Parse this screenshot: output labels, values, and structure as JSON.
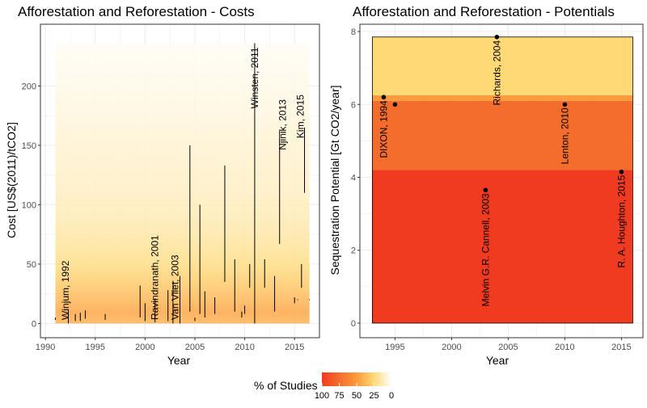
{
  "colors": {
    "panel_bg": "#ffffff",
    "grid": "#ebebeb",
    "border": "#333333",
    "band_100": "#f03b20",
    "band_75": "#f46d2c",
    "band_50": "#fd9a3c",
    "band_25": "#fed976",
    "band_0": "#ffffff",
    "cost_fill": "#fff2bf",
    "segment": "#000000",
    "point": "#000000"
  },
  "chart_data": [
    {
      "type": "segment",
      "title": "Afforestation and Reforestation - Costs",
      "xlabel": "Year",
      "ylabel": "Cost [US$(2011)/tCO2]",
      "xlim": [
        1989.5,
        2017.5
      ],
      "ylim": [
        -12,
        252
      ],
      "xticks": [
        1990,
        1995,
        2000,
        2005,
        2010,
        2015
      ],
      "yticks": [
        0,
        50,
        100,
        150,
        200
      ],
      "density_range": [
        0,
        236
      ],
      "gradient": [
        {
          "y": 0,
          "pct": 40
        },
        {
          "y": 10,
          "pct": 45
        },
        {
          "y": 20,
          "pct": 38
        },
        {
          "y": 30,
          "pct": 32
        },
        {
          "y": 50,
          "pct": 22
        },
        {
          "y": 75,
          "pct": 16
        },
        {
          "y": 100,
          "pct": 12
        },
        {
          "y": 150,
          "pct": 8
        },
        {
          "y": 200,
          "pct": 4
        },
        {
          "y": 236,
          "pct": 2
        }
      ],
      "segments": [
        {
          "x": 1991.0,
          "y0": 3,
          "y1": 5
        },
        {
          "x": 1992.3,
          "y0": 0,
          "y1": 12
        },
        {
          "x": 1993.0,
          "y0": 2,
          "y1": 8
        },
        {
          "x": 1993.5,
          "y0": 2,
          "y1": 9
        },
        {
          "x": 1994.0,
          "y0": 4,
          "y1": 11
        },
        {
          "x": 1996.0,
          "y0": 3,
          "y1": 8
        },
        {
          "x": 1999.5,
          "y0": 5,
          "y1": 32
        },
        {
          "x": 2000.0,
          "y0": 2,
          "y1": 17
        },
        {
          "x": 2001.0,
          "y0": 1,
          "y1": 21
        },
        {
          "x": 2002.3,
          "y0": 2,
          "y1": 28
        },
        {
          "x": 2002.8,
          "y0": 0,
          "y1": 36
        },
        {
          "x": 2003.5,
          "y0": 0,
          "y1": 40
        },
        {
          "x": 2004.5,
          "y0": 10,
          "y1": 150
        },
        {
          "x": 2005.0,
          "y0": 2,
          "y1": 5
        },
        {
          "x": 2005.5,
          "y0": 8,
          "y1": 100
        },
        {
          "x": 2006.0,
          "y0": 5,
          "y1": 27
        },
        {
          "x": 2007.0,
          "y0": 8,
          "y1": 22
        },
        {
          "x": 2008.0,
          "y0": 35,
          "y1": 133
        },
        {
          "x": 2009.0,
          "y0": 10,
          "y1": 54
        },
        {
          "x": 2009.7,
          "y0": 5,
          "y1": 10
        },
        {
          "x": 2010.0,
          "y0": 8,
          "y1": 15
        },
        {
          "x": 2010.5,
          "y0": 30,
          "y1": 50
        },
        {
          "x": 2011.0,
          "y0": 0,
          "y1": 236
        },
        {
          "x": 2012.0,
          "y0": 30,
          "y1": 54
        },
        {
          "x": 2013.0,
          "y0": 10,
          "y1": 40
        },
        {
          "x": 2013.5,
          "y0": 67,
          "y1": 162
        },
        {
          "x": 2015.0,
          "y0": 17,
          "y1": 22
        },
        {
          "x": 2015.3,
          "y0": 20,
          "y1": 20
        },
        {
          "x": 2015.7,
          "y0": 30,
          "y1": 50
        },
        {
          "x": 2016.0,
          "y0": 110,
          "y1": 165
        },
        {
          "x": 2016.5,
          "y0": 20,
          "y1": 20
        }
      ],
      "annotations": [
        {
          "label": "Winjum, 1992",
          "x": 1992.0,
          "y": 3
        },
        {
          "label": "Ravindranath, 2001",
          "x": 2001.0,
          "y": 3
        },
        {
          "label": "Van Vliet, 2003",
          "x": 2003.0,
          "y": 3
        },
        {
          "label": "Winsten, 2011",
          "x": 2011.0,
          "y": 181
        },
        {
          "label": "Njinik, 2013",
          "x": 2013.8,
          "y": 146
        },
        {
          "label": "Kim, 2015",
          "x": 2015.6,
          "y": 156
        }
      ]
    },
    {
      "type": "scatter",
      "title": "Afforestation and Reforestation - Potentials",
      "xlabel": "Year",
      "ylabel": "Sequestration Potential [Gt CO2/year]",
      "xlim": [
        1991.9,
        2016.9
      ],
      "ylim": [
        -0.4,
        8.2
      ],
      "xticks": [
        1995,
        2000,
        2005,
        2010,
        2015
      ],
      "yticks": [
        0,
        2,
        4,
        6,
        8
      ],
      "bands": [
        {
          "y0": 0,
          "y1": 4.2,
          "pct": 100
        },
        {
          "y0": 4.2,
          "y1": 6.1,
          "pct": 75
        },
        {
          "y0": 6.1,
          "y1": 6.25,
          "pct": 50
        },
        {
          "y0": 6.25,
          "y1": 7.85,
          "pct": 25
        }
      ],
      "points": [
        {
          "x": 1994.0,
          "y": 6.2,
          "label": "DIXON, 1994"
        },
        {
          "x": 1995.0,
          "y": 6.0,
          "label": ""
        },
        {
          "x": 2003.0,
          "y": 3.65,
          "label": "Melvin G.R. Cannell, 2003"
        },
        {
          "x": 2004.0,
          "y": 7.85,
          "label": "Richards, 2004"
        },
        {
          "x": 2010.0,
          "y": 6.0,
          "label": "Lenton, 2010"
        },
        {
          "x": 2015.0,
          "y": 4.15,
          "label": "R. A. Houghton, 2015"
        }
      ]
    }
  ],
  "legend": {
    "title": "% of Studies",
    "ticks": [
      100,
      75,
      50,
      25,
      0
    ]
  }
}
